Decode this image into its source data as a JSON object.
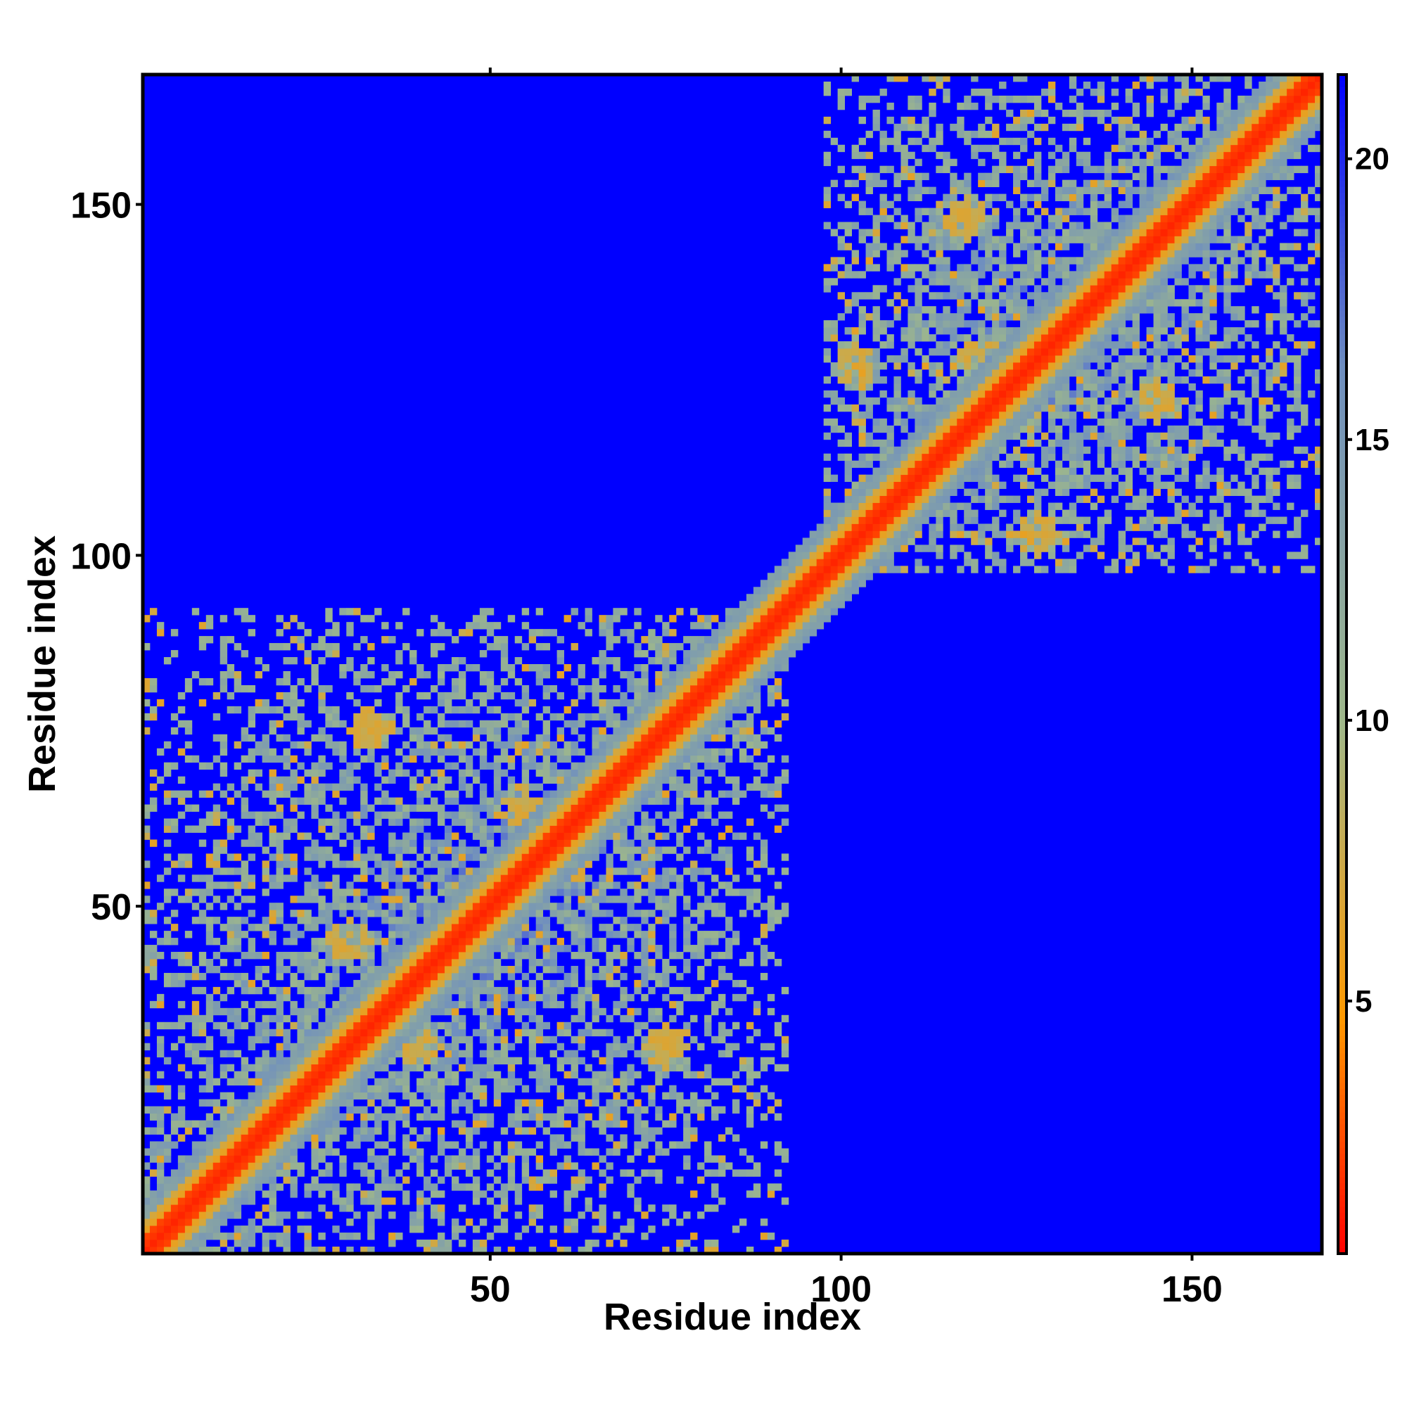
{
  "chart_data": {
    "type": "heatmap",
    "title": "",
    "xlabel": "Residue index",
    "ylabel": "Residue index",
    "xlim": [
      1,
      168
    ],
    "ylim": [
      1,
      168
    ],
    "x_ticks": [
      50,
      100,
      150
    ],
    "y_ticks": [
      50,
      100,
      150
    ],
    "colorbar": {
      "range": [
        0.5,
        21.5
      ],
      "ticks": [
        5,
        10,
        15,
        20
      ],
      "colors": [
        "#ff0000",
        "#ff9900",
        "#9fb88a",
        "#6f8fbf",
        "#0000ff"
      ],
      "stops": [
        0.0,
        0.2,
        0.45,
        0.75,
        1.0
      ]
    },
    "background_value": 21.5,
    "diagonal": {
      "from": 1,
      "to": 168,
      "value": 1.5
    },
    "domains": [
      {
        "name_hint": "domain 1",
        "start": 1,
        "end": 92
      },
      {
        "name_hint": "domain 2",
        "start": 98,
        "end": 168
      }
    ],
    "contact_clusters": [
      {
        "x": 22,
        "y": 20,
        "value": 6
      },
      {
        "x": 30,
        "y": 45,
        "value": 6
      },
      {
        "x": 40,
        "y": 30,
        "value": 6
      },
      {
        "x": 55,
        "y": 63,
        "value": 6
      },
      {
        "x": 61,
        "y": 56,
        "value": 6
      },
      {
        "x": 75,
        "y": 30,
        "value": 6
      },
      {
        "x": 33,
        "y": 75,
        "value": 6
      },
      {
        "x": 120,
        "y": 128,
        "value": 6
      },
      {
        "x": 125,
        "y": 120,
        "value": 6
      },
      {
        "x": 145,
        "y": 122,
        "value": 6
      },
      {
        "x": 118,
        "y": 148,
        "value": 6
      },
      {
        "x": 128,
        "y": 103,
        "value": 6
      },
      {
        "x": 102,
        "y": 127,
        "value": 6
      }
    ]
  }
}
